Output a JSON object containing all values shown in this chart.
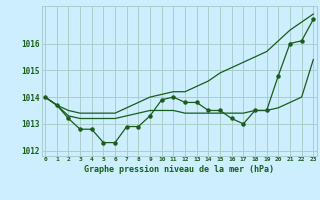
{
  "xlabel": "Graphe pression niveau de la mer (hPa)",
  "hours": [
    0,
    1,
    2,
    3,
    4,
    5,
    6,
    7,
    8,
    9,
    10,
    11,
    12,
    13,
    14,
    15,
    16,
    17,
    18,
    19,
    20,
    21,
    22,
    23
  ],
  "line_upper": [
    1014.0,
    1013.7,
    1013.5,
    1013.4,
    1013.4,
    1013.4,
    1013.4,
    1013.6,
    1013.8,
    1014.0,
    1014.1,
    1014.2,
    1014.2,
    1014.4,
    1014.6,
    1014.9,
    1015.1,
    1015.3,
    1015.5,
    1015.7,
    1016.1,
    1016.5,
    1016.8,
    1017.1
  ],
  "line_lower": [
    1014.0,
    1013.7,
    1013.3,
    1013.2,
    1013.2,
    1013.2,
    1013.2,
    1013.3,
    1013.4,
    1013.5,
    1013.5,
    1013.5,
    1013.4,
    1013.4,
    1013.4,
    1013.4,
    1013.4,
    1013.4,
    1013.5,
    1013.5,
    1013.6,
    1013.8,
    1014.0,
    1015.4
  ],
  "line_main": [
    1014.0,
    1013.7,
    1013.2,
    1012.8,
    1012.8,
    1012.3,
    1012.3,
    1012.9,
    1012.9,
    1013.3,
    1013.9,
    1014.0,
    1013.8,
    1013.8,
    1013.5,
    1013.5,
    1013.2,
    1013.0,
    1013.5,
    1013.5,
    1014.8,
    1016.0,
    1016.1,
    1016.9
  ],
  "bg_color": "#cceeff",
  "grid_color": "#aacccc",
  "line_color": "#1a5c1a",
  "ylim": [
    1011.8,
    1017.4
  ],
  "yticks": [
    1012,
    1013,
    1014,
    1015,
    1016
  ],
  "xtick_labels": [
    "0",
    "1",
    "2",
    "3",
    "4",
    "5",
    "6",
    "7",
    "8",
    "9",
    "10",
    "11",
    "12",
    "13",
    "14",
    "15",
    "16",
    "17",
    "18",
    "19",
    "20",
    "21",
    "22",
    "23"
  ]
}
